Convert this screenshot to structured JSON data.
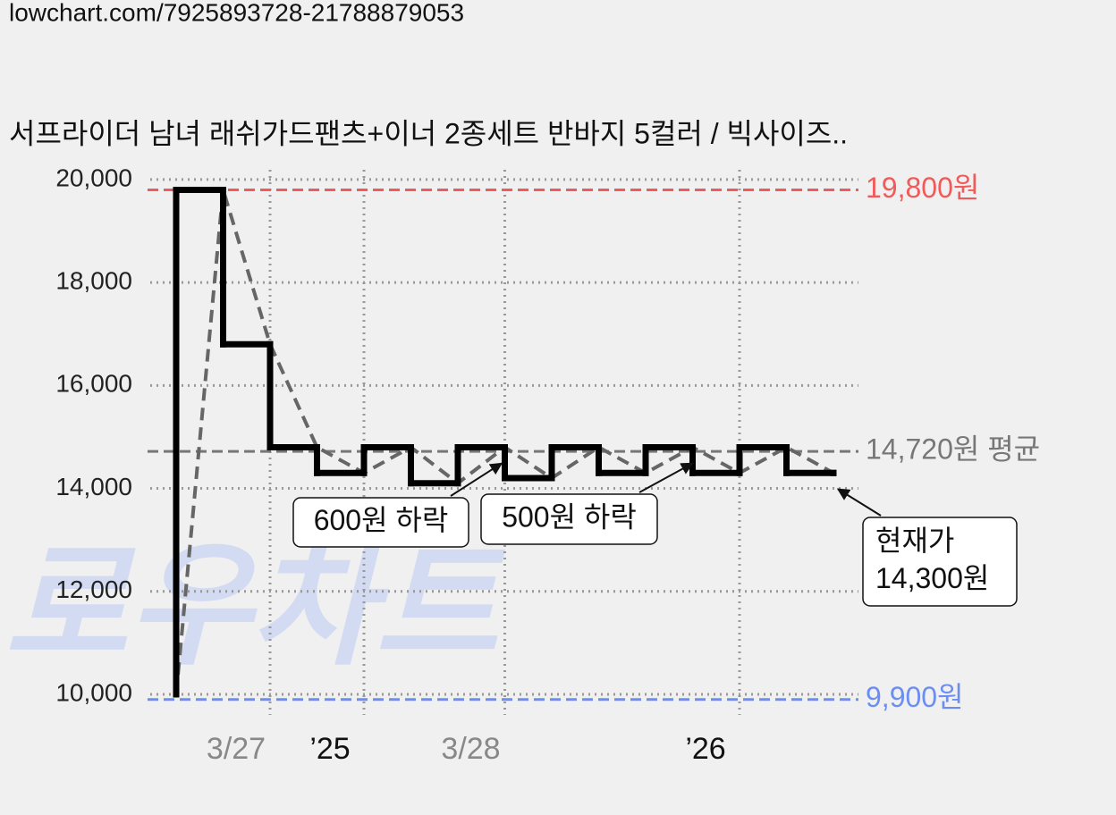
{
  "header": {
    "url": "lowchart.com/7925893728-21788879053"
  },
  "chart_data": {
    "type": "step",
    "title": "서프라이더 남녀 래쉬가드팬츠+이너 2종세트 반바지 5컬러 / 빅사이즈..",
    "watermark": "로우차트",
    "x": [
      6,
      6,
      7.5,
      9,
      10.5,
      12,
      13.5,
      15,
      16.5,
      18,
      19.5,
      21,
      22.5,
      24,
      25.5,
      27
    ],
    "series": [
      {
        "color": "#000000",
        "values": [
          10000,
          19800,
          16800,
          14800,
          14300,
          14800,
          14100,
          14800,
          14200,
          14800,
          14300,
          14800,
          14300,
          14800,
          14300,
          14300
        ]
      }
    ],
    "trend": {
      "color": "#666666",
      "x": [
        6,
        7.5,
        9,
        10.5,
        12,
        13.5,
        15,
        16.5,
        18,
        19.5,
        21,
        22.5,
        24,
        25.5,
        27
      ],
      "values": [
        10000,
        19800,
        16800,
        14800,
        14300,
        14800,
        14100,
        14800,
        14200,
        14800,
        14300,
        14800,
        14300,
        14800,
        14300
      ]
    },
    "xlim": [
      5,
      28
    ],
    "xticks": [
      {
        "value": 9,
        "label": "3/27"
      },
      {
        "value": 12,
        "label": "’25"
      },
      {
        "value": 16.5,
        "label": "3/28"
      },
      {
        "value": 24,
        "label": "’26"
      }
    ],
    "ylim": [
      9600,
      20200
    ],
    "yticks": [
      {
        "value": 10000,
        "label": "10,000"
      },
      {
        "value": 12000,
        "label": "12,000"
      },
      {
        "value": 14000,
        "label": "14,000"
      },
      {
        "value": 16000,
        "label": "16,000"
      },
      {
        "value": 18000,
        "label": "18,000"
      },
      {
        "value": 20000,
        "label": "20,000"
      }
    ],
    "grid": true,
    "reference_lines": [
      {
        "value": 19800,
        "label": "19,800원",
        "color": "#f05a5a"
      },
      {
        "value": 14720,
        "label": "14,720원 평균",
        "color": "#777777"
      },
      {
        "value": 9900,
        "label": "9,900원",
        "color": "#6c8ef0"
      }
    ],
    "annotations": [
      {
        "lines": [
          "600원 하락"
        ],
        "x": 16.4,
        "y": 14800
      },
      {
        "lines": [
          "500원 하락"
        ],
        "x": 22.5,
        "y": 14800
      },
      {
        "lines": [
          "현재가",
          "14,300원"
        ],
        "x": 27,
        "y": 14300
      }
    ]
  }
}
